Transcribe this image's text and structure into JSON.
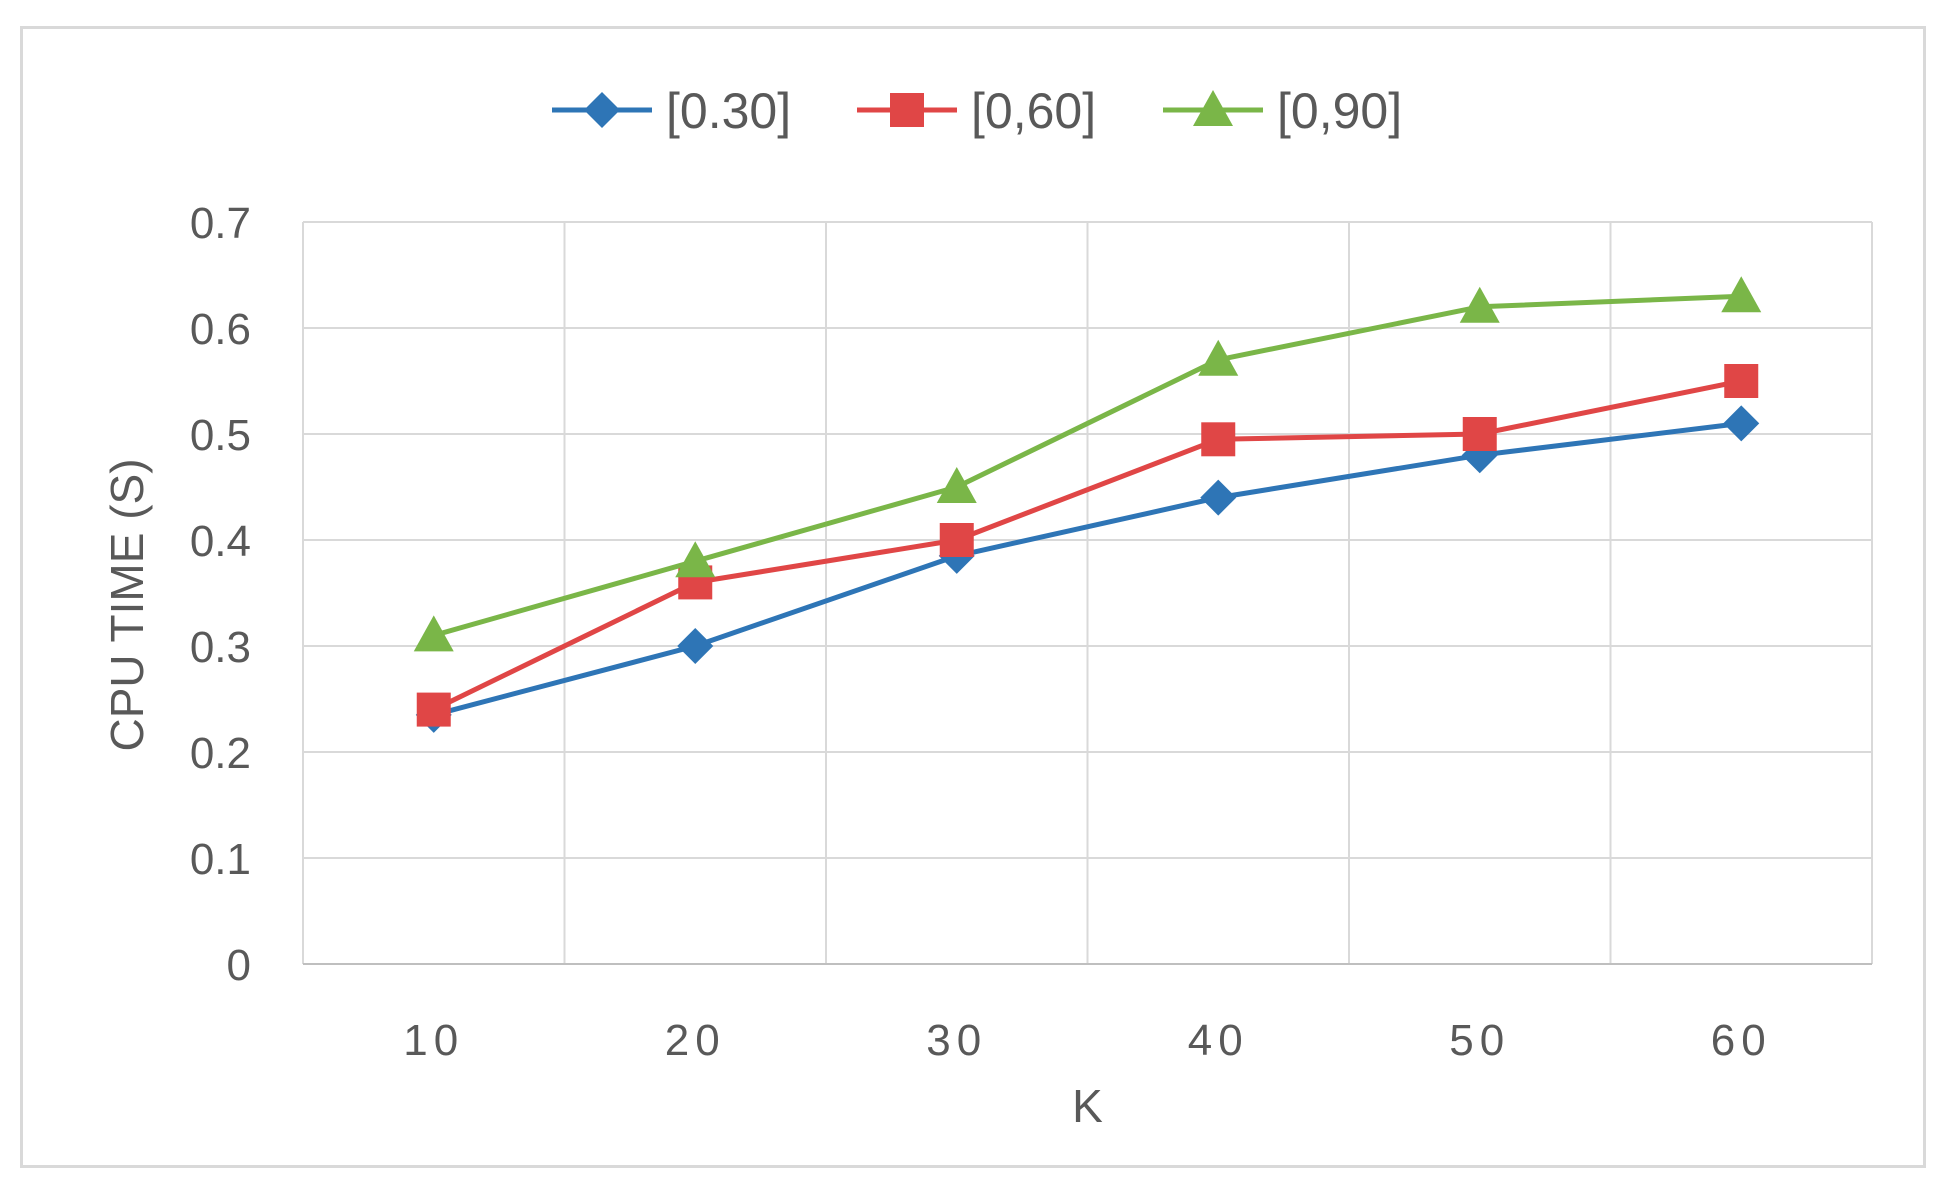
{
  "chart_data": {
    "type": "line",
    "title": "",
    "xlabel": "K",
    "ylabel": "CPU TIME (S)",
    "x": [
      10,
      20,
      30,
      40,
      50,
      60
    ],
    "x_tick_labels": [
      "10",
      "20",
      "30",
      "40",
      "50",
      "60"
    ],
    "ylim": [
      0,
      0.7
    ],
    "y_ticks": [
      0,
      0.1,
      0.2,
      0.3,
      0.4,
      0.5,
      0.6,
      0.7
    ],
    "y_tick_labels": [
      "0",
      "0.1",
      "0.2",
      "0.3",
      "0.4",
      "0.5",
      "0.6",
      "0.7"
    ],
    "grid": true,
    "legend_position": "top",
    "series": [
      {
        "name": "[0.30]",
        "values": [
          0.235,
          0.3,
          0.385,
          0.44,
          0.48,
          0.51
        ],
        "color": "#2e75b6",
        "marker": "diamond"
      },
      {
        "name": "[0,60]",
        "values": [
          0.24,
          0.36,
          0.4,
          0.495,
          0.5,
          0.55
        ],
        "color": "#e04646",
        "marker": "square"
      },
      {
        "name": "[0,90]",
        "values": [
          0.31,
          0.38,
          0.45,
          0.57,
          0.62,
          0.63
        ],
        "color": "#7ab648",
        "marker": "triangle"
      }
    ]
  }
}
